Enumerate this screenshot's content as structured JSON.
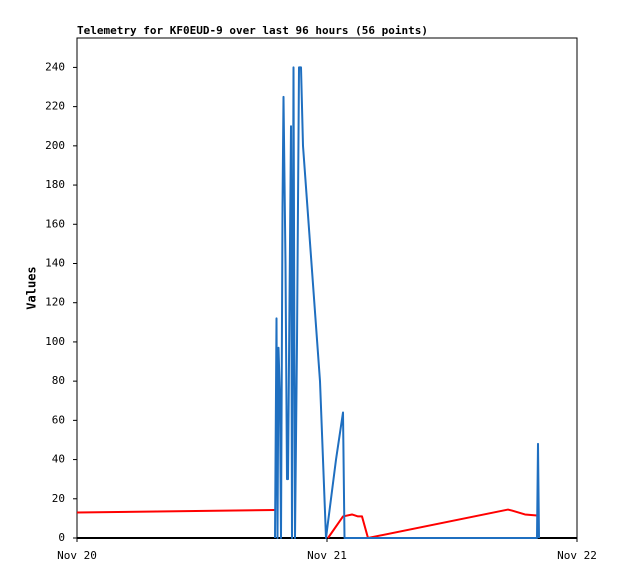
{
  "chart_data": {
    "type": "line",
    "title": "Telemetry for KF0EUD-9 over last 96 hours (56 points)",
    "y_label": "Values",
    "xlim": [
      0,
      2
    ],
    "xticks": [
      {
        "value": 0,
        "label": "Nov 20"
      },
      {
        "value": 1,
        "label": "Nov 21"
      },
      {
        "value": 2,
        "label": "Nov 22"
      }
    ],
    "ylim": [
      0,
      255
    ],
    "yticks": [
      0,
      20,
      40,
      60,
      80,
      100,
      120,
      140,
      160,
      180,
      200,
      220,
      240
    ],
    "series": [
      {
        "color": "#000000",
        "x": [
          0,
          2
        ],
        "values": [
          0,
          0
        ]
      },
      {
        "color": "#ff0000",
        "x": [
          0,
          0.792,
          0.9,
          1.004,
          1.064,
          1.1,
          1.124,
          1.14,
          1.164,
          1.724,
          1.74,
          1.792,
          1.84
        ],
        "values": [
          13,
          14.3,
          null,
          0,
          11,
          12,
          11,
          11,
          0,
          14.5,
          14,
          12,
          11.5
        ]
      },
      {
        "color": "#1f6fc0",
        "x": [
          0.792,
          0.798,
          0.802,
          0.806,
          0.812,
          0.816,
          0.822,
          0.826,
          0.834,
          0.84,
          0.844,
          0.852,
          0.856,
          0.86,
          0.866,
          0.872,
          0.88,
          0.888,
          0.896,
          0.904,
          0.972,
          0.996,
          1.036,
          1.064,
          1.07,
          1.84,
          1.844,
          1.848
        ],
        "values": [
          0,
          112,
          0,
          97,
          70,
          0,
          168,
          225,
          140,
          30,
          30,
          150,
          210,
          0,
          240,
          0,
          100,
          240,
          240,
          200,
          80,
          0,
          40,
          64,
          0,
          0,
          48,
          0
        ]
      }
    ]
  }
}
